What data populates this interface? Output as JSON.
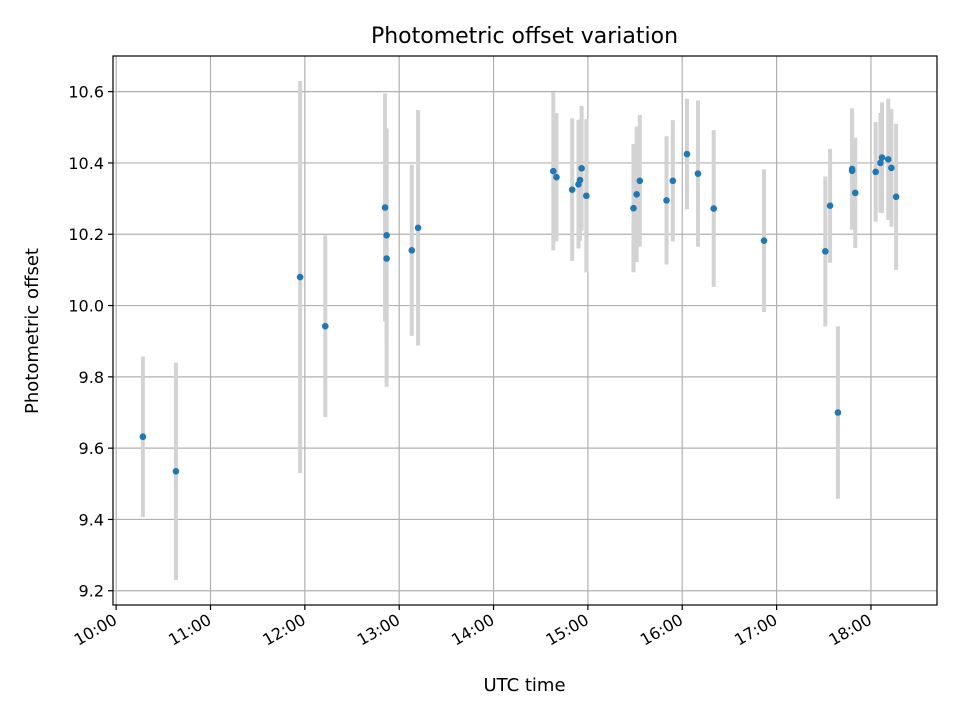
{
  "chart_data": {
    "type": "scatter",
    "title": "Photometric offset variation",
    "xlabel": "UTC time",
    "ylabel": "Photometric offset",
    "xlim": [
      "09:58",
      "18:42"
    ],
    "ylim": [
      9.16,
      10.7
    ],
    "x_ticks": [
      "10:00",
      "11:00",
      "12:00",
      "13:00",
      "14:00",
      "15:00",
      "16:00",
      "17:00",
      "18:00"
    ],
    "y_ticks": [
      "9.2",
      "9.4",
      "9.6",
      "9.8",
      "10.0",
      "10.2",
      "10.4",
      "10.6"
    ],
    "grid": true,
    "colors": {
      "point": "#1f77b4",
      "errorbar": "#d3d3d3"
    },
    "series": [
      {
        "points": [
          {
            "x": "10:17",
            "y": 9.632,
            "yerr": 0.225
          },
          {
            "x": "10:38",
            "y": 9.535,
            "yerr": 0.305
          },
          {
            "x": "11:57",
            "y": 10.08,
            "yerr": 0.55
          },
          {
            "x": "12:13",
            "y": 9.942,
            "yerr": 0.255
          },
          {
            "x": "12:51",
            "y": 10.275,
            "yerr": 0.32
          },
          {
            "x": "12:52",
            "y": 10.197,
            "yerr": 0.3
          },
          {
            "x": "12:52",
            "y": 10.132,
            "yerr": 0.36
          },
          {
            "x": "13:08",
            "y": 10.155,
            "yerr": 0.24
          },
          {
            "x": "13:12",
            "y": 10.218,
            "yerr": 0.33
          },
          {
            "x": "14:38",
            "y": 10.377,
            "yerr": 0.222
          },
          {
            "x": "14:40",
            "y": 10.36,
            "yerr": 0.18
          },
          {
            "x": "14:50",
            "y": 10.325,
            "yerr": 0.2
          },
          {
            "x": "14:54",
            "y": 10.34,
            "yerr": 0.18
          },
          {
            "x": "14:55",
            "y": 10.352,
            "yerr": 0.17
          },
          {
            "x": "14:56",
            "y": 10.385,
            "yerr": 0.175
          },
          {
            "x": "14:59",
            "y": 10.308,
            "yerr": 0.215
          },
          {
            "x": "15:29",
            "y": 10.273,
            "yerr": 0.18
          },
          {
            "x": "15:31",
            "y": 10.312,
            "yerr": 0.19
          },
          {
            "x": "15:33",
            "y": 10.35,
            "yerr": 0.185
          },
          {
            "x": "15:50",
            "y": 10.295,
            "yerr": 0.18
          },
          {
            "x": "15:54",
            "y": 10.35,
            "yerr": 0.17
          },
          {
            "x": "16:03",
            "y": 10.425,
            "yerr": 0.155
          },
          {
            "x": "16:10",
            "y": 10.37,
            "yerr": 0.205
          },
          {
            "x": "16:20",
            "y": 10.272,
            "yerr": 0.22
          },
          {
            "x": "16:52",
            "y": 10.182,
            "yerr": 0.2
          },
          {
            "x": "17:31",
            "y": 10.152,
            "yerr": 0.21
          },
          {
            "x": "17:34",
            "y": 10.28,
            "yerr": 0.16
          },
          {
            "x": "17:39",
            "y": 9.7,
            "yerr": 0.242
          },
          {
            "x": "17:48",
            "y": 10.383,
            "yerr": 0.17
          },
          {
            "x": "17:48",
            "y": 10.378,
            "yerr": 0.165
          },
          {
            "x": "17:50",
            "y": 10.316,
            "yerr": 0.155
          },
          {
            "x": "18:03",
            "y": 10.375,
            "yerr": 0.14
          },
          {
            "x": "18:06",
            "y": 10.4,
            "yerr": 0.14
          },
          {
            "x": "18:07",
            "y": 10.415,
            "yerr": 0.155
          },
          {
            "x": "18:11",
            "y": 10.41,
            "yerr": 0.17
          },
          {
            "x": "18:13",
            "y": 10.386,
            "yerr": 0.165
          },
          {
            "x": "18:16",
            "y": 10.305,
            "yerr": 0.205
          }
        ]
      }
    ]
  }
}
